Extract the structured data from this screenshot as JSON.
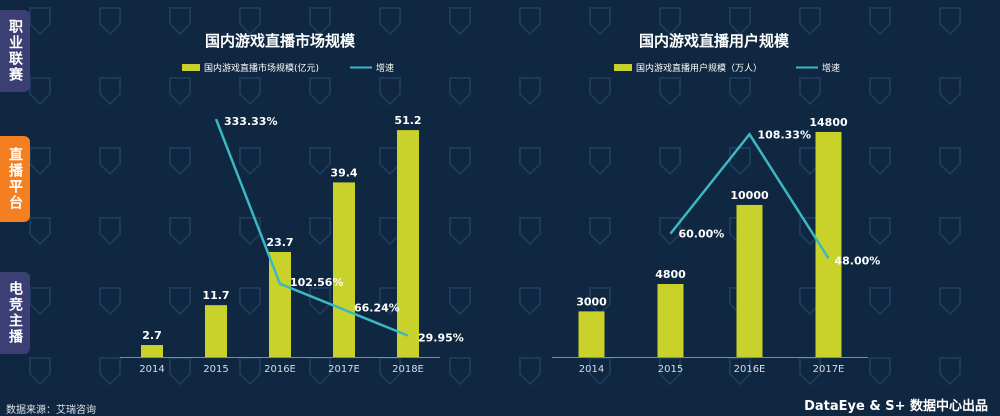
{
  "side_tabs": [
    "职业联赛",
    "直播平台",
    "电竞主播"
  ],
  "footer": {
    "source": "数据来源：艾瑞咨询",
    "credit": "DataEye & S+ 数据中心出品"
  },
  "colors": {
    "background": "#0f2740",
    "bar": "#c8d22a",
    "line": "#3bb8c4",
    "tab_inactive": "#3b3f74",
    "tab_active": "#f47f21"
  },
  "chart_data": [
    {
      "type": "bar",
      "title": "国内游戏直播市场规模",
      "categories": [
        "2014",
        "2015",
        "2016E",
        "2017E",
        "2018E"
      ],
      "series": [
        {
          "name": "国内游戏直播市场规模(亿元)",
          "type": "bar",
          "values": [
            2.7,
            11.7,
            23.7,
            39.4,
            51.2
          ],
          "labels": [
            "2.7",
            "11.7",
            "23.7",
            "39.4",
            "51.2"
          ]
        },
        {
          "name": "增速",
          "type": "line",
          "values": [
            null,
            333.33,
            102.56,
            66.24,
            29.95
          ],
          "labels": [
            null,
            "333.33%",
            "102.56%",
            "66.24%",
            "29.95%"
          ]
        }
      ],
      "ylim": [
        0,
        58
      ],
      "ylim_secondary": [
        0,
        360
      ],
      "legend": "top-center",
      "grid": false
    },
    {
      "type": "bar",
      "title": "国内游戏直播用户规模",
      "categories": [
        "2014",
        "2015",
        "2016E",
        "2017E"
      ],
      "series": [
        {
          "name": "国内游戏直播用户规模（万人）",
          "type": "bar",
          "values": [
            3000,
            4800,
            10000,
            14800
          ],
          "labels": [
            "3000",
            "4800",
            "10000",
            "14800"
          ]
        },
        {
          "name": "增速",
          "type": "line",
          "values": [
            null,
            60.0,
            108.33,
            48.0
          ],
          "labels": [
            null,
            "60.00%",
            "108.33%",
            "48.00%"
          ]
        }
      ],
      "ylim": [
        0,
        16900
      ],
      "ylim_secondary": [
        0,
        125
      ],
      "legend": "top-center",
      "grid": false
    }
  ]
}
